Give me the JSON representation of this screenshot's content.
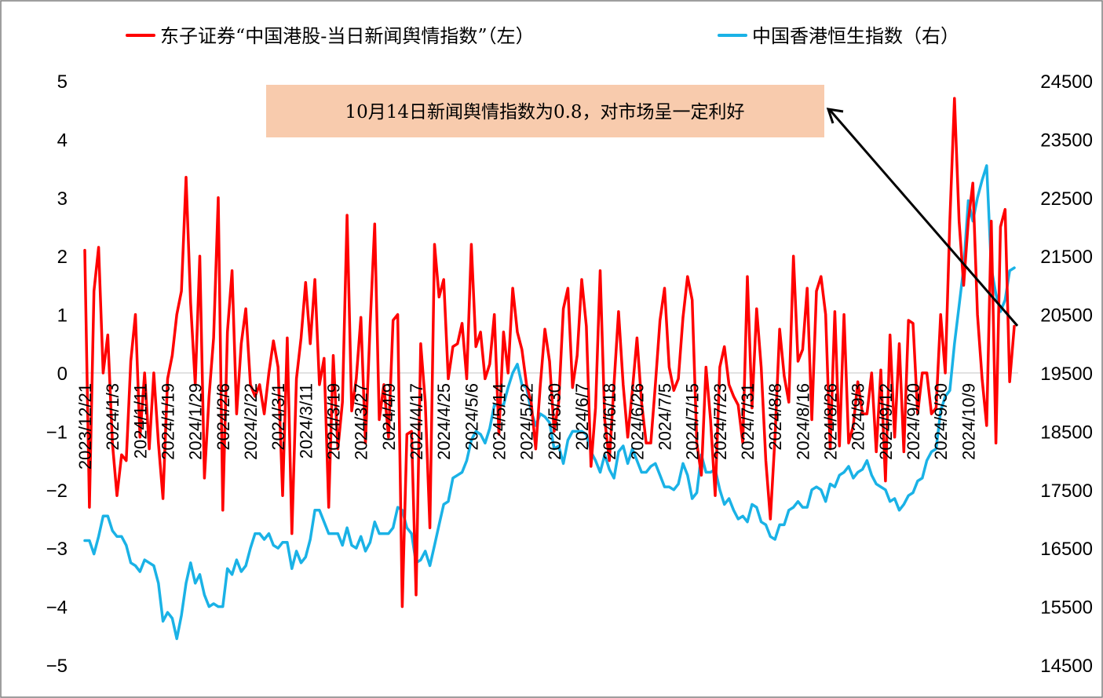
{
  "chart_data": {
    "type": "line",
    "legend": {
      "placement": "top",
      "items": [
        {
          "label": "东子证券“中国港股-当日新闻舆情指数”（左）",
          "color": "#ff0000"
        },
        {
          "label": "中国香港恒生指数（右）",
          "color": "#1ab2e6"
        }
      ]
    },
    "y_left": {
      "min": -5,
      "max": 5,
      "ticks": [
        "5",
        "4",
        "3",
        "2",
        "1",
        "0",
        "−1",
        "−2",
        "−3",
        "−4",
        "−5"
      ]
    },
    "y_right": {
      "min": 14500,
      "max": 24500,
      "ticks": [
        "24500",
        "23500",
        "22500",
        "21500",
        "20500",
        "19500",
        "18500",
        "17500",
        "16500",
        "15500",
        "14500"
      ]
    },
    "x_tick_labels": [
      "2023/12/21",
      "2024/1/3",
      "2024/1/11",
      "2024/1/19",
      "2024/1/29",
      "2024/2/6",
      "2024/2/22",
      "2024/3/1",
      "2024/3/11",
      "2024/3/19",
      "2024/3/27",
      "2024/4/9",
      "2024/4/17",
      "2024/4/25",
      "2024/5/6",
      "2024/5/14",
      "2024/5/22",
      "2024/5/30",
      "2024/6/7",
      "2024/6/18",
      "2024/6/26",
      "2024/7/5",
      "2024/7/15",
      "2024/7/23",
      "2024/7/31",
      "2024/8/8",
      "2024/8/16",
      "2024/8/26",
      "2024/9/3",
      "2024/9/12",
      "2024/9/20",
      "2024/9/30",
      "2024/10/9"
    ],
    "x_tick_every": 6,
    "annotation": {
      "text": "10月14日新闻舆情指数为0.8，对市场呈一定利好",
      "box_color": "#f8cbad"
    },
    "series": [
      {
        "name": "东子证券“中国港股-当日新闻舆情指数”（左）",
        "color": "#ff0000",
        "axis": "left",
        "values": [
          2.1,
          -2.3,
          1.4,
          2.15,
          0.0,
          0.65,
          -1.2,
          -2.1,
          -1.4,
          -1.5,
          0.2,
          1.0,
          -1.1,
          0.0,
          -1.3,
          0.0,
          -1.2,
          -2.15,
          -0.1,
          0.3,
          1.0,
          1.4,
          3.35,
          1.2,
          -0.2,
          2.0,
          -1.8,
          -0.4,
          0.6,
          3.0,
          -2.35,
          0.7,
          1.75,
          -0.7,
          0.5,
          1.1,
          -0.2,
          -0.4,
          -0.2,
          -0.7,
          0.0,
          0.55,
          0.1,
          -2.1,
          0.6,
          -2.75,
          -0.1,
          0.6,
          1.55,
          0.5,
          1.6,
          -0.2,
          0.25,
          -2.3,
          0.3,
          -1.3,
          -0.5,
          2.7,
          -0.65,
          -0.1,
          0.95,
          -1.2,
          0.8,
          2.55,
          -0.8,
          -0.2,
          -1.1,
          0.9,
          1.0,
          -4.0,
          -1.05,
          -1.0,
          -3.8,
          0.5,
          -0.5,
          -2.65,
          2.2,
          1.3,
          1.6,
          -0.1,
          0.45,
          0.5,
          0.85,
          -0.1,
          2.2,
          0.45,
          0.7,
          -0.1,
          0.15,
          1.0,
          -1.05,
          0.7,
          0.0,
          1.45,
          0.7,
          0.4,
          -0.2,
          -0.5,
          -1.3,
          -0.2,
          0.75,
          0.2,
          -1.0,
          -0.5,
          1.1,
          1.45,
          -0.25,
          0.3,
          1.6,
          0.8,
          -1.6,
          -0.6,
          1.75,
          -0.8,
          -1.5,
          -0.2,
          1.05,
          -0.2,
          -1.1,
          -0.3,
          0.6,
          -0.5,
          -1.2,
          -1.2,
          -0.2,
          0.9,
          1.45,
          0.1,
          -0.3,
          -0.1,
          0.95,
          1.65,
          1.25,
          -1.2,
          -1.75,
          0.1,
          -0.8,
          -2.1,
          0.1,
          0.45,
          -0.2,
          -0.4,
          -0.55,
          -1.2,
          1.65,
          -0.6,
          1.1,
          0.1,
          -1.5,
          -2.5,
          -1.1,
          0.75,
          -0.05,
          -0.5,
          2.0,
          0.2,
          0.4,
          1.45,
          -0.8,
          1.4,
          1.65,
          1.0,
          -1.3,
          1.05,
          -1.25,
          1.0,
          -1.2,
          -0.9,
          -0.15,
          -0.7,
          -0.7,
          0.0,
          -1.35,
          0.05,
          -1.85,
          0.65,
          -1.1,
          0.5,
          -1.35,
          0.9,
          0.85,
          -0.7,
          0.0,
          0.0,
          -0.7,
          -0.6,
          1.0,
          0.0,
          2.6,
          4.7,
          2.6,
          1.5,
          2.6,
          3.25,
          1.0,
          -0.1,
          -0.9,
          2.6,
          -1.2,
          2.5,
          2.8,
          -0.15,
          0.8
        ]
      },
      {
        "name": "中国香港恒生指数（右）",
        "color": "#1ab2e6",
        "axis": "right",
        "values": [
          16630,
          16630,
          16400,
          16700,
          17050,
          17050,
          16800,
          16700,
          16700,
          16550,
          16250,
          16200,
          16100,
          16300,
          16250,
          16200,
          15900,
          15250,
          15400,
          15300,
          14950,
          15350,
          15900,
          16250,
          15900,
          16050,
          15700,
          15500,
          15550,
          15500,
          15500,
          16150,
          16050,
          16300,
          16100,
          16200,
          16500,
          16750,
          16750,
          16650,
          16750,
          16550,
          16500,
          16600,
          16600,
          16150,
          16450,
          16250,
          16350,
          16650,
          17150,
          17150,
          16950,
          16750,
          16750,
          16750,
          16550,
          16850,
          16550,
          16500,
          16700,
          16450,
          16600,
          16950,
          16750,
          16750,
          16750,
          16850,
          17200,
          17150,
          16850,
          16750,
          16250,
          16300,
          16450,
          16200,
          16550,
          16900,
          17250,
          17300,
          17700,
          17750,
          17800,
          18000,
          18350,
          18500,
          18450,
          18300,
          18550,
          18950,
          18950,
          18950,
          19250,
          19500,
          19650,
          19300,
          19250,
          18850,
          18600,
          18800,
          18750,
          18650,
          18200,
          18250,
          17950,
          18350,
          18500,
          18500,
          18500,
          18450,
          18150,
          18000,
          17800,
          18100,
          17850,
          17700,
          18150,
          18250,
          17950,
          18200,
          18000,
          17800,
          17800,
          17900,
          17950,
          17750,
          17550,
          17550,
          17500,
          17600,
          17950,
          17750,
          17350,
          17450,
          18100,
          17800,
          17800,
          17850,
          17500,
          17250,
          17350,
          17150,
          17000,
          17050,
          16950,
          17250,
          17200,
          16950,
          16900,
          16700,
          16650,
          16900,
          16900,
          17150,
          17200,
          17300,
          17200,
          17200,
          17500,
          17550,
          17500,
          17300,
          17600,
          17550,
          17750,
          17800,
          17900,
          17700,
          17800,
          17850,
          18000,
          17750,
          17600,
          17550,
          17500,
          17300,
          17350,
          17150,
          17250,
          17400,
          17450,
          17650,
          17700,
          18000,
          18150,
          18200,
          18850,
          19100,
          19200,
          20000,
          20650,
          21300,
          22450,
          22100,
          22500,
          22800,
          23050,
          21300,
          20850,
          20550,
          20750,
          21250,
          21300
        ]
      }
    ]
  }
}
